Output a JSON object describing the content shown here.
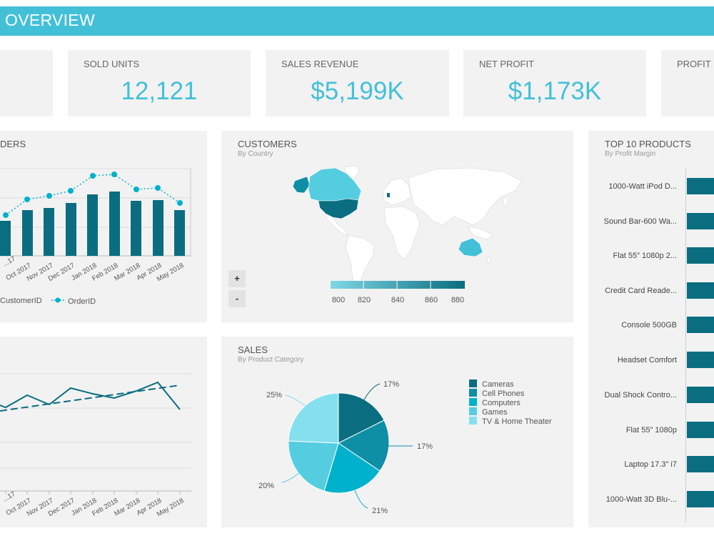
{
  "header": {
    "title": "OVERVIEW"
  },
  "kpis": [
    {
      "label": "SOLD UNITS",
      "value": "12,121"
    },
    {
      "label": "SALES REVENUE",
      "value": "$5,199K"
    },
    {
      "label": "NET PROFIT",
      "value": "$1,173K"
    },
    {
      "label": "PROFIT M"
    }
  ],
  "orders_panel": {
    "title": "DERS",
    "months": [
      "Oct 2017",
      "Nov 2017",
      "Dec 2017",
      "Jan 2018",
      "Feb 2018",
      "Mar 2018",
      "Apr 2018",
      "May 2018"
    ],
    "legend_customer": "CustomerID",
    "legend_order": "OrderID"
  },
  "customers_panel": {
    "title": "CUSTOMERS",
    "subtitle": "By Country",
    "scale_labels": [
      "800",
      "820",
      "840",
      "860",
      "880"
    ],
    "zoom_in": "+",
    "zoom_out": "-"
  },
  "trend_panel": {
    "months": [
      "Oct 2017",
      "Nov 2017",
      "Dec 2017",
      "Jan 2018",
      "Feb 2018",
      "Mar 2018",
      "Apr 2018",
      "May 2018"
    ]
  },
  "sales_panel": {
    "title": "SALES",
    "subtitle": "By Product Category",
    "legend": [
      "Cameras",
      "Cell Phones",
      "Computers",
      "Games",
      "TV & Home Theater"
    ],
    "slice_labels": [
      "17%",
      "17%",
      "21%",
      "20%",
      "25%"
    ]
  },
  "products_panel": {
    "title": "TOP 10 PRODUCTS",
    "subtitle": "By Profit Margin",
    "items": [
      "1000-Watt iPod D...",
      "Sound Bar-600 Wa...",
      "Flat 55\" 1080p 2...",
      "Credit Card Reade...",
      "Console 500GB",
      "Headset Comfort",
      "Dual Shock Contro...",
      "Flat 55\" 1080p",
      "Laptop 17.3\" i7",
      "1000-Watt 3D Blu-..."
    ]
  },
  "colors": {
    "accent": "#42c0d8",
    "dark_teal": "#0a6e80",
    "mid_teal": "#0e8fa5",
    "bright_teal": "#00b1cc",
    "light_teal": "#55cde0",
    "pale_teal": "#85e0ee"
  }
}
